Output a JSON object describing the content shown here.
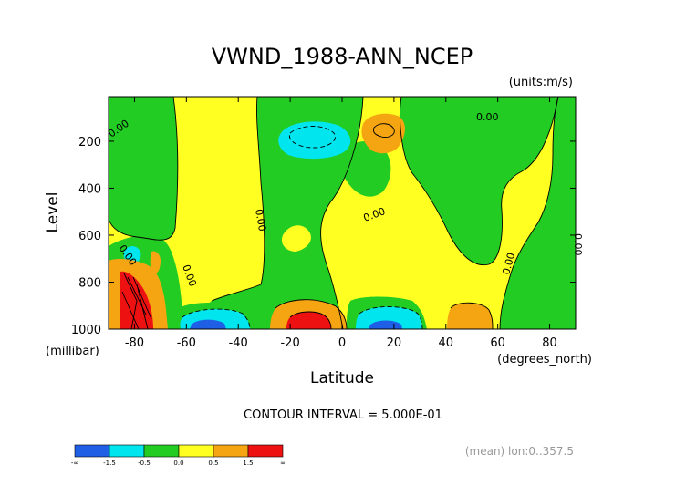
{
  "chart_data": {
    "type": "heatmap",
    "title": "VWND_1988-ANN_NCEP",
    "units": "(units:m/s)",
    "xlabel": "Latitude",
    "x_units": "(degrees_north)",
    "ylabel": "Level",
    "y_units": "(millibar)",
    "xlim": [
      -90,
      90
    ],
    "ylim": [
      1000,
      10
    ],
    "x_ticks": [
      -80,
      -60,
      -40,
      -20,
      0,
      20,
      40,
      60,
      80
    ],
    "x_tick_labels": [
      "-80",
      "-60",
      "-40",
      "-20",
      "0",
      "20",
      "40",
      "60",
      "80"
    ],
    "y_ticks": [
      200,
      400,
      600,
      800,
      1000
    ],
    "y_tick_labels": [
      "200",
      "400",
      "600",
      "800",
      "1000"
    ],
    "contour_interval_text": "CONTOUR INTERVAL = 5.000E-01",
    "footer_text": "(mean) lon:0..357.5",
    "contour_labels": [
      "0.00",
      "0.00",
      "0.00",
      "0.00",
      "0.00",
      "0.00",
      "0.00",
      "0.00"
    ],
    "colorbar": {
      "labels": [
        "-∞",
        "-1.5",
        "-0.5",
        "0.0",
        "0.5",
        "1.5",
        "∞"
      ],
      "colors": [
        "#1f5fe6",
        "#00e5ee",
        "#22cc22",
        "#ffff22",
        "#f5a412",
        "#ee1111"
      ]
    },
    "regions": [
      {
        "level": "positive",
        "color": "#ffff22",
        "lat": [
          -90,
          90
        ],
        "p": [
          10,
          1000
        ]
      },
      {
        "level": "slightly_negative",
        "color": "#22cc22",
        "lat": [
          -88,
          -72
        ],
        "p": [
          10,
          600
        ]
      },
      {
        "level": "slightly_negative",
        "color": "#22cc22",
        "lat": [
          -55,
          -25
        ],
        "p": [
          10,
          900
        ]
      },
      {
        "level": "negative",
        "color": "#00e5ee",
        "lat": [
          -22,
          -6
        ],
        "p": [
          120,
          240
        ]
      },
      {
        "level": "strong_positive",
        "color": "#f5a412",
        "lat": [
          10,
          22
        ],
        "p": [
          110,
          230
        ]
      },
      {
        "level": "slightly_negative",
        "color": "#22cc22",
        "lat": [
          28,
          52
        ],
        "p": [
          10,
          780
        ]
      },
      {
        "level": "slightly_negative",
        "color": "#22cc22",
        "lat": [
          64,
          84
        ],
        "p": [
          30,
          1000
        ]
      },
      {
        "level": "max",
        "color": "#ee1111",
        "lat": [
          -88,
          -76
        ],
        "p": [
          800,
          1000
        ]
      },
      {
        "level": "strong_negative",
        "color": "#1f5fe6",
        "lat": [
          -60,
          -42
        ],
        "p": [
          940,
          1000
        ]
      },
      {
        "level": "max",
        "color": "#ee1111",
        "lat": [
          -24,
          -4
        ],
        "p": [
          900,
          1000
        ]
      },
      {
        "level": "strong_negative",
        "color": "#1f5fe6",
        "lat": [
          10,
          24
        ],
        "p": [
          960,
          1000
        ]
      },
      {
        "level": "strong_positive",
        "color": "#f5a412",
        "lat": [
          38,
          58
        ],
        "p": [
          890,
          1000
        ]
      }
    ]
  }
}
